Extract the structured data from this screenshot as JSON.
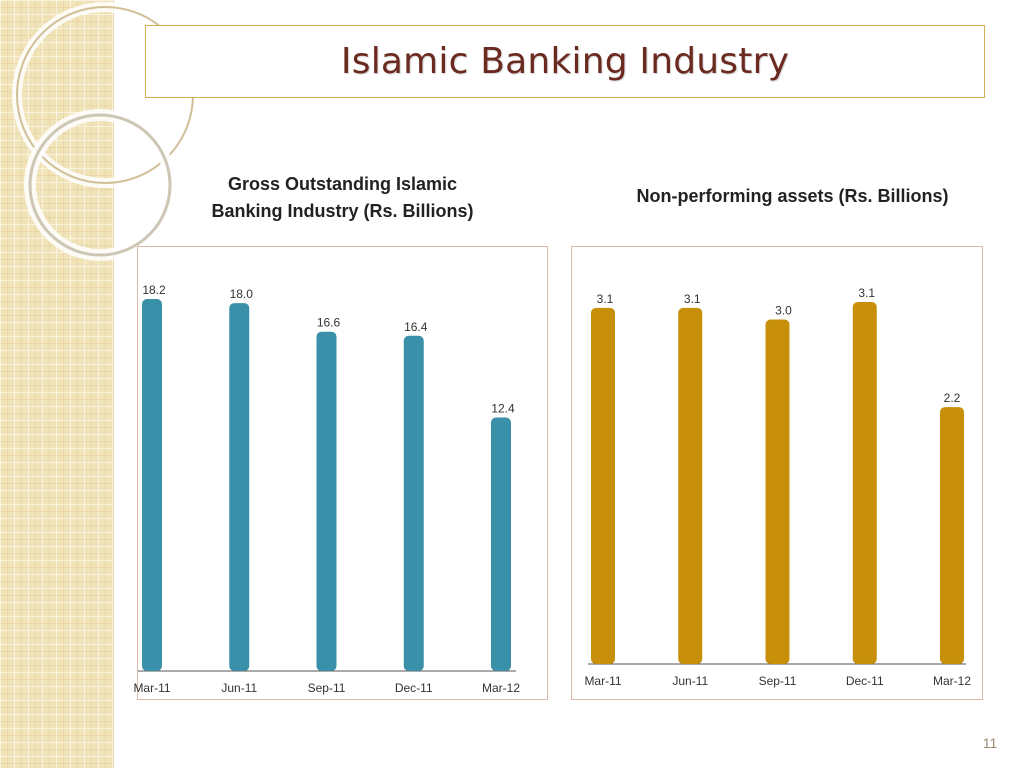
{
  "slide": {
    "title": "Islamic Banking Industry",
    "page_number": "11"
  },
  "colors": {
    "title": "#6b2a20",
    "series_gross": "#3a90a8",
    "series_npa": "#c8900a",
    "frame_border": "#e0b8a8",
    "title_border": "#d4b055"
  },
  "chart_data": [
    {
      "type": "bar",
      "title": "Gross Outstanding Islamic Banking Industry (Rs. Billions)",
      "title_lines": [
        "Gross Outstanding Islamic",
        "Banking Industry (Rs. Billions)"
      ],
      "categories": [
        "Mar-11",
        "Jun-11",
        "Sep-11",
        "Dec-11",
        "Mar-12"
      ],
      "values": [
        18.2,
        18.0,
        16.6,
        16.4,
        12.4
      ],
      "data_labels": [
        "18.2",
        "18.0",
        "16.6",
        "16.4",
        "12.4"
      ],
      "xlabel": "",
      "ylabel": "",
      "ylim": [
        0,
        18.2
      ],
      "grid": false,
      "color": "#3a90a8"
    },
    {
      "type": "bar",
      "title": "Non-performing assets (Rs. Billions)",
      "categories": [
        "Mar-11",
        "Jun-11",
        "Sep-11",
        "Dec-11",
        "Mar-12"
      ],
      "values": [
        3.05,
        3.05,
        2.95,
        3.1,
        2.2
      ],
      "data_labels": [
        "3.1",
        "3.1",
        "3.0",
        "3.1",
        "2.2"
      ],
      "xlabel": "",
      "ylabel": "",
      "ylim": [
        0,
        3.1
      ],
      "grid": false,
      "color": "#c8900a"
    }
  ]
}
